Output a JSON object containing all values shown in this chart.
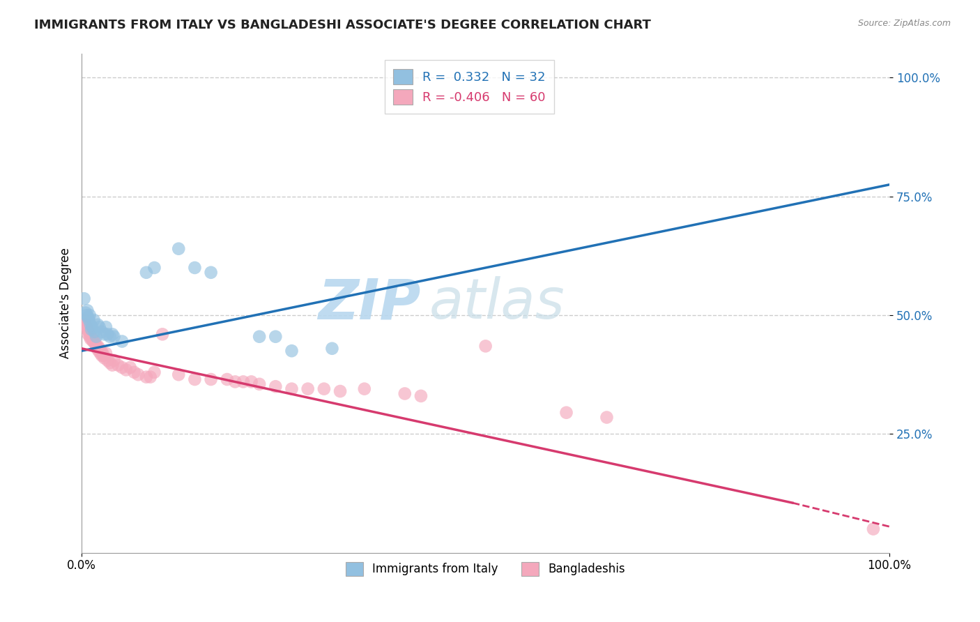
{
  "title": "IMMIGRANTS FROM ITALY VS BANGLADESHI ASSOCIATE'S DEGREE CORRELATION CHART",
  "source": "Source: ZipAtlas.com",
  "ylabel": "Associate's Degree",
  "legend_label_blue": "Immigrants from Italy",
  "legend_label_pink": "Bangladeshis",
  "watermark_zip": "ZIP",
  "watermark_atlas": "atlas",
  "blue_color": "#92c0e0",
  "pink_color": "#f4a8bc",
  "line_blue": "#2171b5",
  "line_pink": "#d63a6e",
  "blue_scatter": [
    [
      0.003,
      0.535
    ],
    [
      0.005,
      0.505
    ],
    [
      0.006,
      0.5
    ],
    [
      0.007,
      0.51
    ],
    [
      0.008,
      0.495
    ],
    [
      0.009,
      0.49
    ],
    [
      0.01,
      0.5
    ],
    [
      0.011,
      0.48
    ],
    [
      0.012,
      0.47
    ],
    [
      0.013,
      0.475
    ],
    [
      0.015,
      0.49
    ],
    [
      0.016,
      0.465
    ],
    [
      0.018,
      0.455
    ],
    [
      0.02,
      0.48
    ],
    [
      0.022,
      0.475
    ],
    [
      0.025,
      0.465
    ],
    [
      0.028,
      0.46
    ],
    [
      0.03,
      0.475
    ],
    [
      0.032,
      0.46
    ],
    [
      0.035,
      0.455
    ],
    [
      0.038,
      0.46
    ],
    [
      0.04,
      0.455
    ],
    [
      0.05,
      0.445
    ],
    [
      0.08,
      0.59
    ],
    [
      0.09,
      0.6
    ],
    [
      0.12,
      0.64
    ],
    [
      0.14,
      0.6
    ],
    [
      0.16,
      0.59
    ],
    [
      0.22,
      0.455
    ],
    [
      0.24,
      0.455
    ],
    [
      0.26,
      0.425
    ],
    [
      0.31,
      0.43
    ]
  ],
  "pink_scatter": [
    [
      0.003,
      0.49
    ],
    [
      0.004,
      0.48
    ],
    [
      0.005,
      0.48
    ],
    [
      0.006,
      0.475
    ],
    [
      0.007,
      0.47
    ],
    [
      0.008,
      0.46
    ],
    [
      0.009,
      0.465
    ],
    [
      0.01,
      0.455
    ],
    [
      0.011,
      0.45
    ],
    [
      0.012,
      0.455
    ],
    [
      0.013,
      0.45
    ],
    [
      0.014,
      0.445
    ],
    [
      0.015,
      0.445
    ],
    [
      0.016,
      0.445
    ],
    [
      0.017,
      0.44
    ],
    [
      0.018,
      0.435
    ],
    [
      0.019,
      0.43
    ],
    [
      0.02,
      0.435
    ],
    [
      0.021,
      0.425
    ],
    [
      0.022,
      0.43
    ],
    [
      0.023,
      0.42
    ],
    [
      0.024,
      0.425
    ],
    [
      0.025,
      0.415
    ],
    [
      0.026,
      0.42
    ],
    [
      0.027,
      0.415
    ],
    [
      0.028,
      0.41
    ],
    [
      0.03,
      0.42
    ],
    [
      0.032,
      0.405
    ],
    [
      0.035,
      0.4
    ],
    [
      0.038,
      0.395
    ],
    [
      0.04,
      0.405
    ],
    [
      0.045,
      0.395
    ],
    [
      0.05,
      0.39
    ],
    [
      0.055,
      0.385
    ],
    [
      0.06,
      0.39
    ],
    [
      0.065,
      0.38
    ],
    [
      0.07,
      0.375
    ],
    [
      0.08,
      0.37
    ],
    [
      0.085,
      0.37
    ],
    [
      0.09,
      0.38
    ],
    [
      0.1,
      0.46
    ],
    [
      0.12,
      0.375
    ],
    [
      0.14,
      0.365
    ],
    [
      0.16,
      0.365
    ],
    [
      0.18,
      0.365
    ],
    [
      0.19,
      0.36
    ],
    [
      0.2,
      0.36
    ],
    [
      0.21,
      0.36
    ],
    [
      0.22,
      0.355
    ],
    [
      0.24,
      0.35
    ],
    [
      0.26,
      0.345
    ],
    [
      0.28,
      0.345
    ],
    [
      0.3,
      0.345
    ],
    [
      0.32,
      0.34
    ],
    [
      0.35,
      0.345
    ],
    [
      0.4,
      0.335
    ],
    [
      0.42,
      0.33
    ],
    [
      0.5,
      0.435
    ],
    [
      0.6,
      0.295
    ],
    [
      0.65,
      0.285
    ],
    [
      0.98,
      0.05
    ]
  ],
  "blue_line": {
    "x0": 0.0,
    "y0": 0.425,
    "x1": 1.0,
    "y1": 0.775
  },
  "pink_line_solid": {
    "x0": 0.0,
    "y0": 0.43,
    "x1": 0.88,
    "y1": 0.105
  },
  "pink_line_dashed": {
    "x0": 0.88,
    "y0": 0.105,
    "x1": 1.0,
    "y1": 0.055
  },
  "ytick_vals": [
    0.25,
    0.5,
    0.75,
    1.0
  ],
  "ytick_labels": [
    "25.0%",
    "50.0%",
    "75.0%",
    "100.0%"
  ],
  "xtick_vals": [
    0.0,
    1.0
  ],
  "xtick_labels": [
    "0.0%",
    "100.0%"
  ],
  "xlim": [
    0.0,
    1.0
  ],
  "ylim": [
    0.0,
    1.05
  ],
  "grid_color": "#cccccc",
  "title_fontsize": 13,
  "source_fontsize": 9,
  "tick_fontsize": 12
}
